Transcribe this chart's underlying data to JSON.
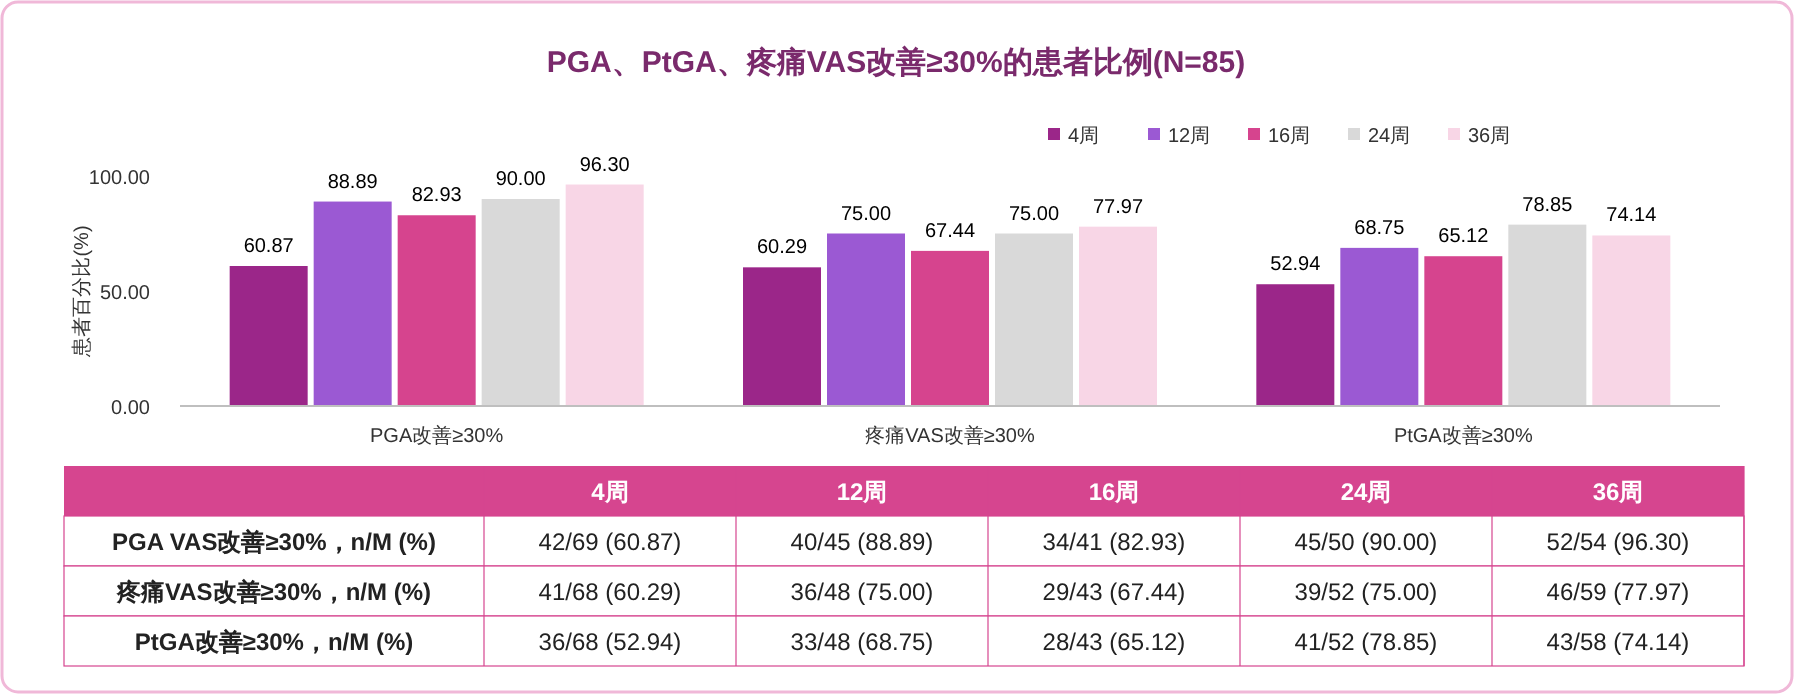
{
  "chart_data": [
    {
      "type": "bar",
      "title": "PGA、PtGA、疼痛VAS改善≥30%的患者比例(N=85)",
      "ylabel": "患者百分比(%)",
      "categories": [
        "PGA改善≥30%",
        "疼痛VAS改善≥30%",
        "PtGA改善≥30%"
      ],
      "series": [
        {
          "name": "4周",
          "color": "#9b2689",
          "values": [
            60.87,
            60.29,
            52.94
          ],
          "value_labels": [
            "60.87",
            "60.29",
            "52.94"
          ]
        },
        {
          "name": "12周",
          "color": "#9b59d3",
          "values": [
            88.89,
            75.0,
            68.75
          ],
          "value_labels": [
            "88.89",
            "75.00",
            "68.75"
          ]
        },
        {
          "name": "16周",
          "color": "#d6448e",
          "values": [
            82.93,
            67.44,
            65.12
          ],
          "value_labels": [
            "82.93",
            "67.44",
            "65.12"
          ]
        },
        {
          "name": "24周",
          "color": "#d9d9d9",
          "values": [
            90.0,
            75.0,
            78.85
          ],
          "value_labels": [
            "90.00",
            "75.00",
            "78.85"
          ]
        },
        {
          "name": "36周",
          "color": "#f8d6e6",
          "values": [
            96.3,
            77.97,
            74.14
          ],
          "value_labels": [
            "96.30",
            "77.97",
            "74.14"
          ]
        }
      ],
      "ylim": [
        0,
        100
      ],
      "yticks": [
        {
          "value": 0,
          "label": "0.00"
        },
        {
          "value": 50,
          "label": "50.00"
        },
        {
          "value": 100,
          "label": "100.00"
        }
      ],
      "grid": false,
      "legend": "top right"
    },
    {
      "type": "other",
      "categories": [
        "4周",
        "12周",
        "16周",
        "24周",
        "36周"
      ],
      "y_categories": [
        "PGA VAS改善≥30%，n/M (%)",
        "疼痛VAS改善≥30%，n/M (%)",
        "PtGA改善≥30%，n/M (%)"
      ],
      "cell_labels": [
        [
          "42/69 (60.87)",
          "40/45 (88.89)",
          "34/41 (82.93)",
          "45/50 (90.00)",
          "52/54 (96.30)"
        ],
        [
          "41/68 (60.29)",
          "36/48 (75.00)",
          "29/43 (67.44)",
          "39/52 (75.00)",
          "46/59 (77.97)"
        ],
        [
          "36/68 (52.94)",
          "33/48 (68.75)",
          "28/43 (65.12)",
          "41/52 (78.85)",
          "43/58 (74.14)"
        ]
      ]
    }
  ]
}
